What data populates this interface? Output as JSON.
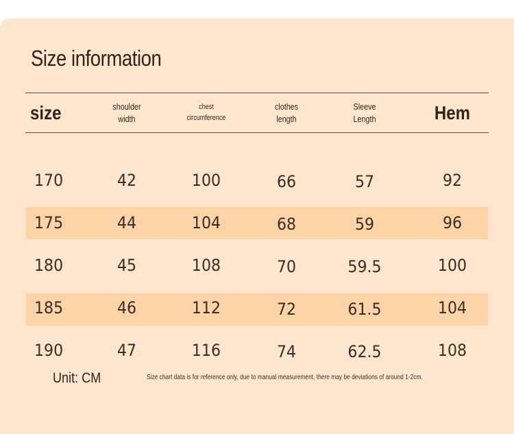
{
  "title": "Size information",
  "table": {
    "headers": [
      "size",
      "shoulder\nwidth",
      "chest\ncircumference",
      "clothes\nlength",
      "Sleeve\nLength",
      "Hem"
    ],
    "rows": [
      [
        "170",
        "42",
        "100",
        "66",
        "57",
        "92"
      ],
      [
        "175",
        "44",
        "104",
        "68",
        "59",
        "96"
      ],
      [
        "180",
        "45",
        "108",
        "70",
        "59.5",
        "100"
      ],
      [
        "185",
        "46",
        "112",
        "72",
        "61.5",
        "104"
      ],
      [
        "190",
        "47",
        "116",
        "74",
        "62.5",
        "108"
      ]
    ],
    "highlighted_rows": [
      1,
      3
    ]
  },
  "unit_label": "Unit: CM",
  "note": "Size chart data is for reference only, due to manual measurement, there may be deviations of around 1-2cm.",
  "colors": {
    "background": "#fde6cd",
    "stripe": "#fdd3a8",
    "text": "#33231a"
  }
}
